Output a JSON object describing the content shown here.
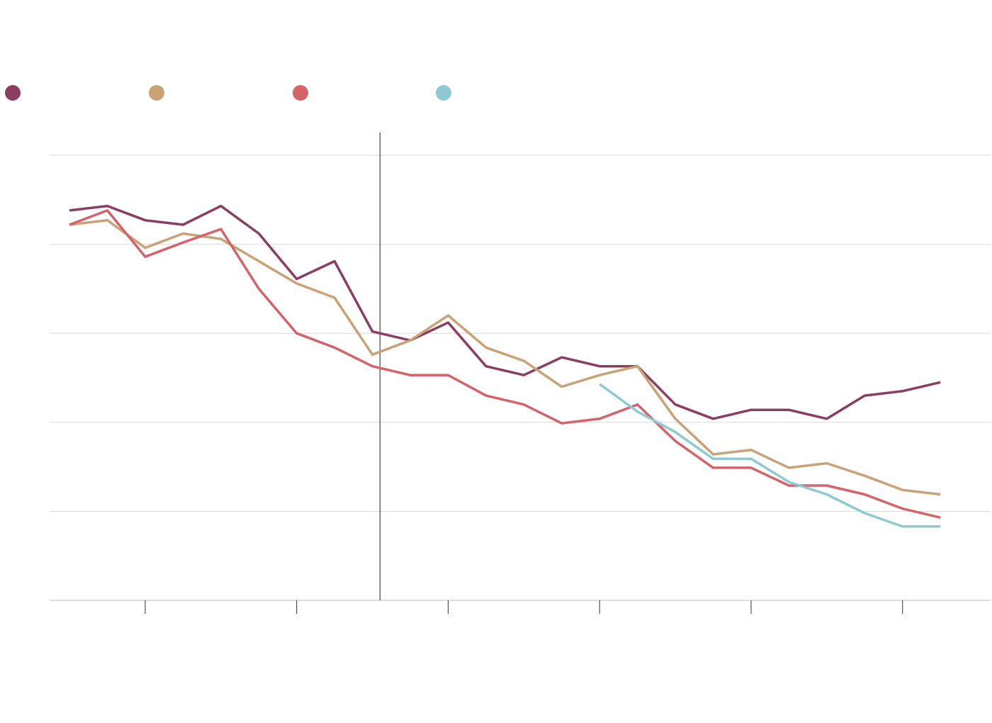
{
  "chart_data": {
    "type": "line",
    "title": "",
    "xlabel": "",
    "ylabel": "",
    "x": [
      1,
      2,
      3,
      4,
      5,
      6,
      7,
      8,
      9,
      10,
      11,
      12,
      13,
      14,
      15,
      16,
      17,
      18,
      19,
      20,
      21,
      22,
      23,
      24
    ],
    "xlim": [
      0.475,
      25.325
    ],
    "ylim": [
      0,
      5
    ],
    "x_ticks": [
      3,
      7,
      11,
      15,
      19,
      23
    ],
    "x_tick_labels": [
      "",
      "",
      "",
      "",
      "",
      ""
    ],
    "y_gridlines": [
      1,
      2,
      3,
      4,
      5
    ],
    "y_tick_labels": [
      "",
      "",
      "",
      "",
      ""
    ],
    "reference_line_x": 9.2,
    "grid": true,
    "legend_position": "top-left",
    "series": [
      {
        "name": "",
        "color": "#8b3d62",
        "values": [
          4.38,
          4.43,
          4.27,
          4.22,
          4.43,
          4.12,
          3.61,
          3.81,
          3.02,
          2.92,
          3.12,
          2.63,
          2.53,
          2.73,
          2.63,
          2.63,
          2.2,
          2.04,
          2.14,
          2.14,
          2.04,
          2.3,
          2.35,
          2.45
        ]
      },
      {
        "name": "",
        "color": "#c9a276",
        "values": [
          4.22,
          4.27,
          3.96,
          4.12,
          4.06,
          3.81,
          3.56,
          3.4,
          2.76,
          2.92,
          3.2,
          2.84,
          2.69,
          2.4,
          2.53,
          2.63,
          2.04,
          1.64,
          1.69,
          1.49,
          1.54,
          1.4,
          1.24,
          1.19
        ]
      },
      {
        "name": "",
        "color": "#d6636a",
        "values": [
          4.22,
          4.38,
          3.86,
          4.02,
          4.17,
          3.5,
          3.0,
          2.84,
          2.63,
          2.53,
          2.53,
          2.3,
          2.2,
          1.99,
          2.04,
          2.2,
          1.79,
          1.49,
          1.49,
          1.29,
          1.29,
          1.19,
          1.03,
          0.93
        ]
      },
      {
        "name": "",
        "color": "#8ecad3",
        "values": [
          null,
          null,
          null,
          null,
          null,
          null,
          null,
          null,
          null,
          null,
          null,
          null,
          null,
          null,
          2.43,
          2.12,
          1.89,
          1.59,
          1.59,
          1.33,
          1.19,
          0.98,
          0.83,
          0.83
        ]
      }
    ]
  },
  "legend": {
    "items": [
      {
        "label": "",
        "color": "#8b3d62"
      },
      {
        "label": "",
        "color": "#c9a276"
      },
      {
        "label": "",
        "color": "#d6636a"
      },
      {
        "label": "",
        "color": "#8ecad3"
      }
    ]
  }
}
